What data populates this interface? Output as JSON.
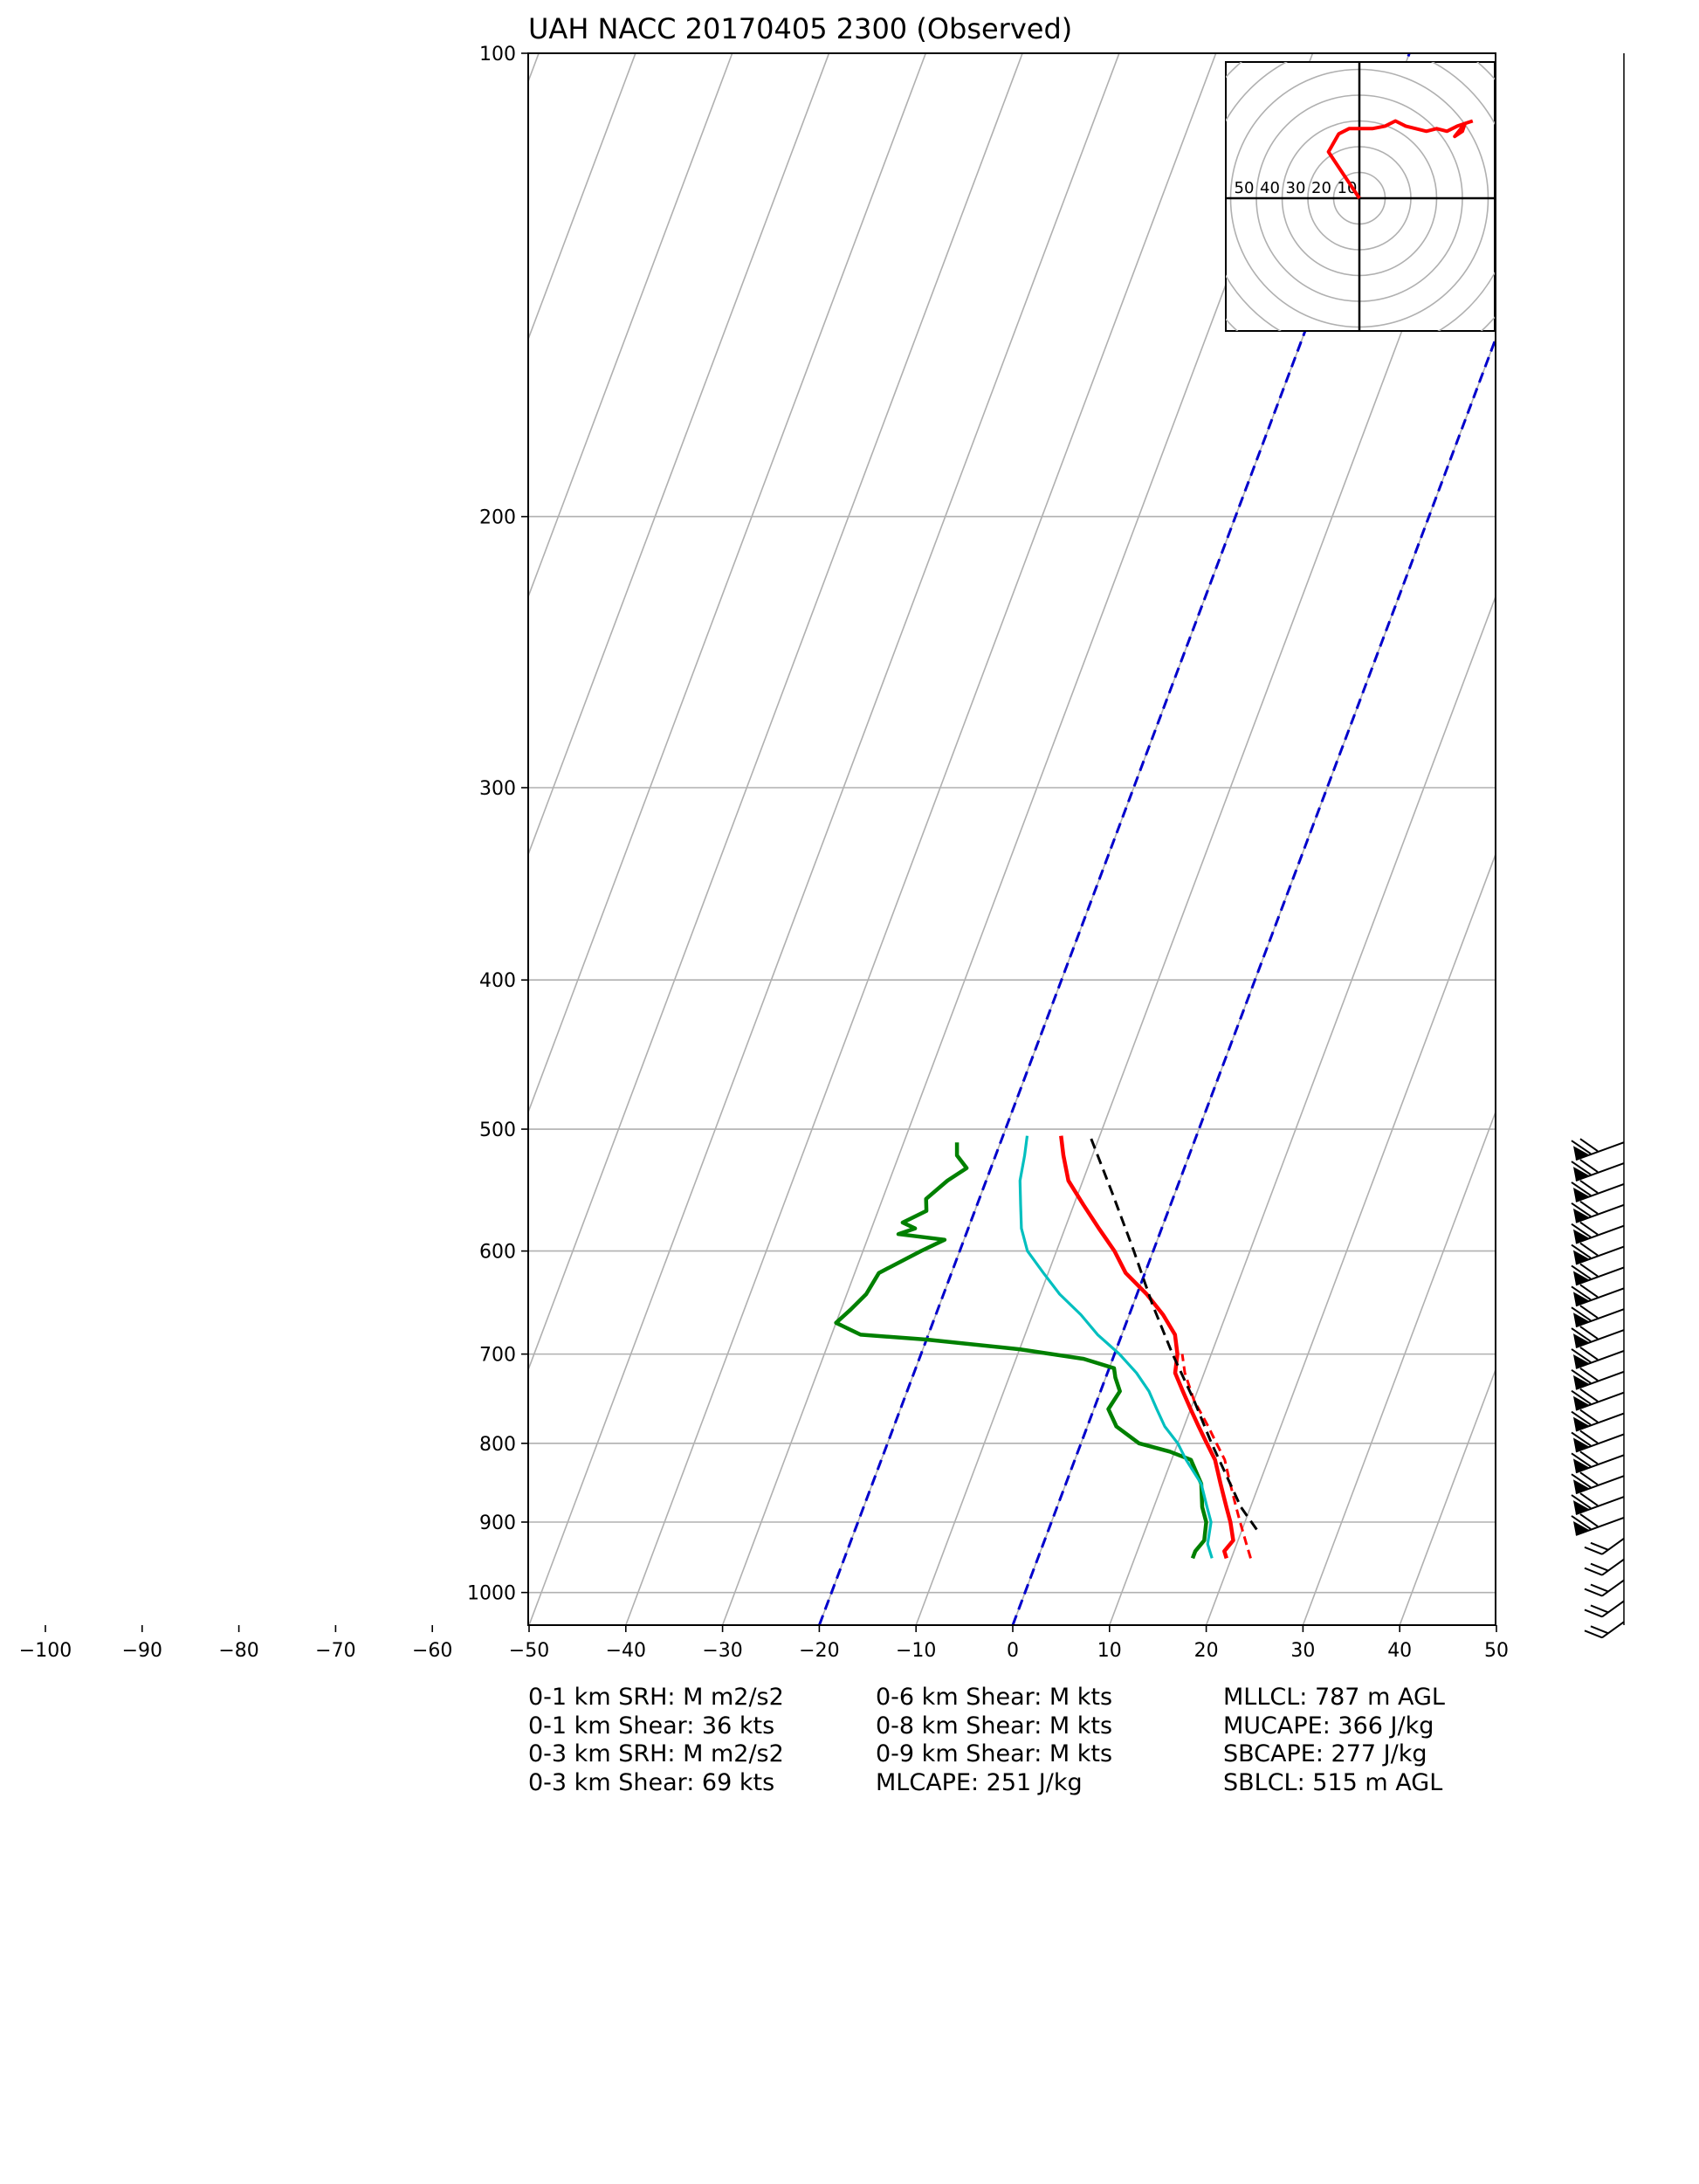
{
  "title": "UAH NACC 20170405 2300",
  "subtitle": "(Observed)",
  "colors": {
    "temperature": "#ff0000",
    "dewpoint": "#008000",
    "wetbulb": "#00bfbf",
    "parcel": "#000000",
    "isotherm_highlight": "#0000cc",
    "grid": "#b0b0b0"
  },
  "chart_data": {
    "type": "skew-t log-p",
    "y_scale": "log",
    "ylim": [
      1050,
      100
    ],
    "xlim": [
      -100,
      50
    ],
    "y_ticks": [
      100,
      200,
      300,
      400,
      500,
      600,
      700,
      800,
      900,
      1000
    ],
    "x_ticks": [
      -100,
      -90,
      -80,
      -70,
      -60,
      -50,
      -40,
      -30,
      -20,
      -10,
      0,
      10,
      20,
      30,
      40,
      50
    ],
    "highlighted_isotherms": [
      -20,
      0
    ],
    "series": [
      {
        "name": "Temperature",
        "style": "solid",
        "points": [
          [
            950,
            19.5
          ],
          [
            940,
            19.0
          ],
          [
            925,
            19.5
          ],
          [
            900,
            18.5
          ],
          [
            880,
            17.5
          ],
          [
            850,
            16.0
          ],
          [
            820,
            14.5
          ],
          [
            800,
            13.0
          ],
          [
            780,
            11.5
          ],
          [
            760,
            10.0
          ],
          [
            740,
            8.5
          ],
          [
            720,
            7.0
          ],
          [
            700,
            6.5
          ],
          [
            680,
            5.5
          ],
          [
            660,
            3.5
          ],
          [
            640,
            1.0
          ],
          [
            620,
            -2.0
          ],
          [
            600,
            -4.0
          ],
          [
            580,
            -6.5
          ],
          [
            560,
            -9.0
          ],
          [
            540,
            -11.5
          ],
          [
            520,
            -13.0
          ],
          [
            505,
            -14.0
          ]
        ]
      },
      {
        "name": "Temperature (secondary)",
        "style": "dashed",
        "points": [
          [
            950,
            22.0
          ],
          [
            930,
            21.0
          ],
          [
            900,
            19.5
          ],
          [
            880,
            18.5
          ],
          [
            850,
            17.0
          ],
          [
            820,
            15.5
          ],
          [
            800,
            14.0
          ],
          [
            780,
            12.5
          ],
          [
            750,
            10.0
          ],
          [
            720,
            8.0
          ],
          [
            700,
            7.0
          ]
        ]
      },
      {
        "name": "Dewpoint",
        "points": [
          [
            950,
            16.0
          ],
          [
            940,
            16.0
          ],
          [
            925,
            16.5
          ],
          [
            900,
            16.0
          ],
          [
            880,
            15.0
          ],
          [
            850,
            14.0
          ],
          [
            820,
            12.0
          ],
          [
            810,
            9.5
          ],
          [
            800,
            6.0
          ],
          [
            780,
            3.0
          ],
          [
            760,
            1.5
          ],
          [
            740,
            2.0
          ],
          [
            725,
            1.0
          ],
          [
            715,
            0.5
          ],
          [
            705,
            -3.0
          ],
          [
            695,
            -10.0
          ],
          [
            685,
            -20.0
          ],
          [
            680,
            -27.0
          ],
          [
            672,
            -29.0
          ],
          [
            668,
            -30.0
          ],
          [
            655,
            -29.0
          ],
          [
            640,
            -28.0
          ],
          [
            620,
            -27.5
          ],
          [
            600,
            -24.0
          ],
          [
            590,
            -22.0
          ],
          [
            585,
            -27.0
          ],
          [
            580,
            -25.5
          ],
          [
            575,
            -27.0
          ],
          [
            565,
            -25.0
          ],
          [
            555,
            -25.5
          ],
          [
            540,
            -24.0
          ],
          [
            530,
            -22.5
          ],
          [
            520,
            -24.0
          ],
          [
            510,
            -24.5
          ]
        ]
      },
      {
        "name": "Wet-bulb",
        "points": [
          [
            950,
            18.0
          ],
          [
            930,
            17.0
          ],
          [
            900,
            16.5
          ],
          [
            880,
            15.5
          ],
          [
            850,
            14.0
          ],
          [
            820,
            11.5
          ],
          [
            800,
            10.0
          ],
          [
            780,
            8.0
          ],
          [
            760,
            6.5
          ],
          [
            740,
            5.0
          ],
          [
            720,
            3.0
          ],
          [
            700,
            0.5
          ],
          [
            680,
            -2.5
          ],
          [
            660,
            -5.0
          ],
          [
            640,
            -8.0
          ],
          [
            620,
            -10.5
          ],
          [
            600,
            -13.0
          ],
          [
            580,
            -14.5
          ],
          [
            560,
            -15.5
          ],
          [
            540,
            -16.5
          ],
          [
            520,
            -17.0
          ],
          [
            505,
            -17.5
          ]
        ]
      },
      {
        "name": "Parcel",
        "style": "dashed",
        "points": [
          [
            910,
            21.5
          ],
          [
            880,
            19.0
          ],
          [
            850,
            17.0
          ],
          [
            800,
            13.5
          ],
          [
            750,
            10.0
          ],
          [
            700,
            6.0
          ],
          [
            650,
            2.0
          ],
          [
            600,
            -2.0
          ],
          [
            550,
            -6.5
          ],
          [
            505,
            -11.0
          ]
        ]
      }
    ],
    "wind_barbs": {
      "pressure_range_hpa": [
        510,
        1045
      ],
      "direction_deg": "westerly (barbs pointing right)"
    },
    "hodograph": {
      "rings_kts": [
        10,
        20,
        30,
        40,
        50
      ],
      "ring_labels": [
        "50",
        "40",
        "30",
        "20",
        "10"
      ],
      "points_uv": [
        [
          0,
          0
        ],
        [
          -8,
          12
        ],
        [
          -12,
          18
        ],
        [
          -8,
          25
        ],
        [
          -4,
          27
        ],
        [
          5,
          27
        ],
        [
          10,
          28
        ],
        [
          14,
          30
        ],
        [
          18,
          28
        ],
        [
          26,
          26
        ],
        [
          30,
          27
        ],
        [
          34,
          26
        ],
        [
          38,
          28
        ],
        [
          41,
          29
        ],
        [
          40,
          26
        ],
        [
          37,
          24
        ],
        [
          41,
          29
        ],
        [
          44,
          30
        ]
      ]
    }
  },
  "stats": {
    "col1": [
      "0-1 km SRH: M m2/s2",
      "0-1 km Shear: 36 kts",
      "0-3 km SRH: M m2/s2",
      "0-3 km Shear: 69 kts"
    ],
    "col2": [
      "0-6 km Shear: M kts",
      "0-8 km Shear: M kts",
      "0-9 km Shear: M kts",
      "MLCAPE: 251 J/kg"
    ],
    "col3": [
      "MLLCL: 787 m AGL",
      "MUCAPE: 366 J/kg",
      "SBCAPE: 277 J/kg",
      "SBLCL: 515 m AGL"
    ]
  }
}
